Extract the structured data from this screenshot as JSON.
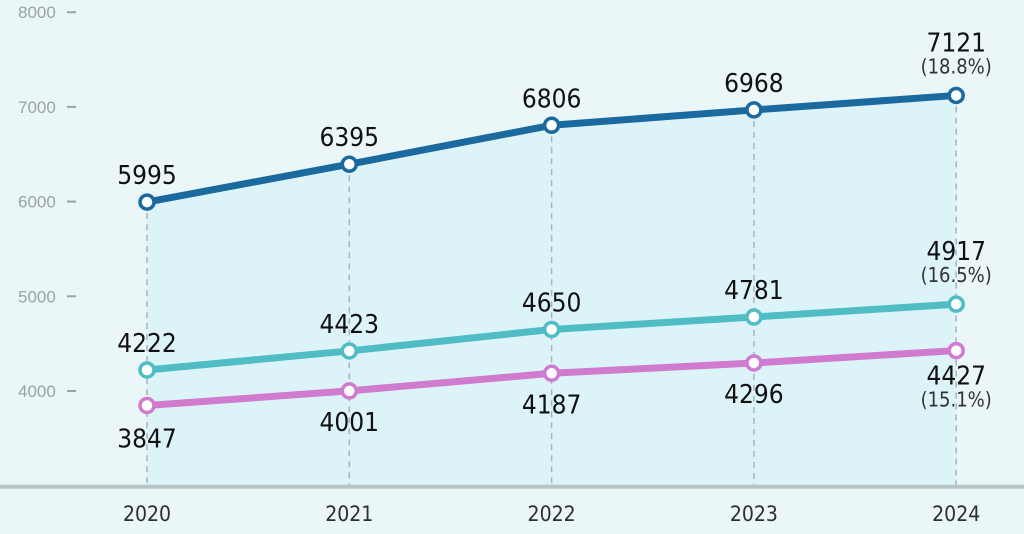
{
  "chart_data": {
    "type": "line",
    "title": "",
    "xlabel": "",
    "ylabel": "",
    "x": [
      "2020",
      "2021",
      "2022",
      "2023",
      "2024"
    ],
    "ylim": [
      3000,
      8000
    ],
    "yticks": [
      "4000",
      "5000",
      "6000",
      "7000",
      "8000"
    ],
    "grid": false,
    "series": [
      {
        "name": "series-1",
        "color": "#1a6aa0",
        "values": [
          5995,
          6395,
          6806,
          6968,
          7121
        ],
        "labels": [
          "5995",
          "6395",
          "6806",
          "6968",
          "7121"
        ],
        "growth_label": "(18.8%)"
      },
      {
        "name": "series-2",
        "color": "#4fbcc6",
        "values": [
          4222,
          4423,
          4650,
          4781,
          4917
        ],
        "labels": [
          "4222",
          "4423",
          "4650",
          "4781",
          "4917"
        ],
        "growth_label": "(16.5%)"
      },
      {
        "name": "series-3",
        "color": "#d07ad0",
        "values": [
          3847,
          4001,
          4187,
          4296,
          4427
        ],
        "labels": [
          "3847",
          "4001",
          "4187",
          "4296",
          "4427"
        ],
        "growth_label": "(15.1%)"
      }
    ]
  }
}
